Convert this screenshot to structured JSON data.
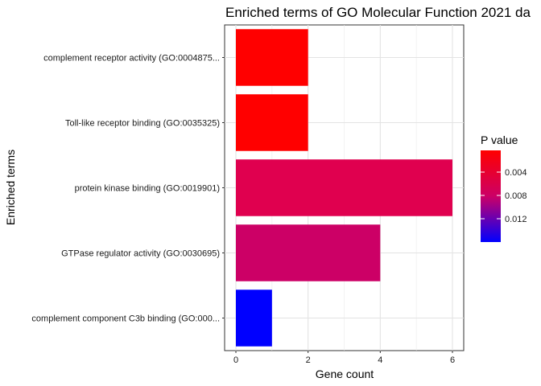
{
  "chart_data": {
    "type": "bar",
    "orientation": "horizontal",
    "title": "Enriched terms of GO Molecular Function 2021 da",
    "xlabel": "Gene count",
    "ylabel": "Enriched terms",
    "xlim": [
      0,
      6.3
    ],
    "xticks": [
      0,
      2,
      4,
      6
    ],
    "grid": true,
    "categories": [
      "complement receptor activity (GO:0004875...",
      "Toll-like receptor binding (GO:0035325)",
      "protein kinase binding (GO:0019901)",
      "GTPase regulator activity (GO:0030695)",
      "complement component C3b binding (GO:000..."
    ],
    "values": [
      2,
      2,
      6,
      4,
      1
    ],
    "colors": [
      "#FF0000",
      "#FF0000",
      "#E0004F",
      "#CC0066",
      "#0000FF"
    ],
    "legend": {
      "title": "P value",
      "position": "right",
      "ticks": [
        "0.004",
        "0.008",
        "0.012"
      ],
      "color_low_pvalue": "#FF0000",
      "color_high_pvalue": "#0000FF"
    }
  }
}
